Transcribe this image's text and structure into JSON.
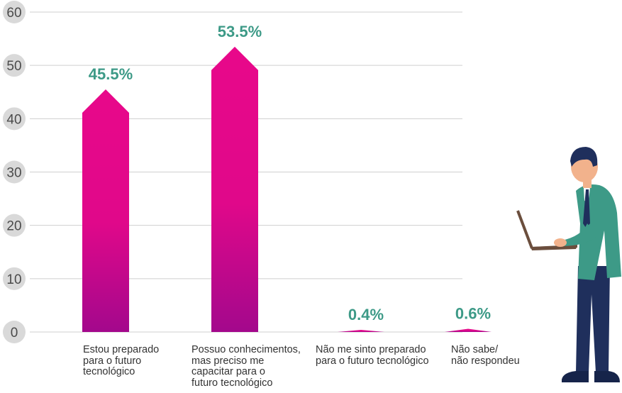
{
  "chart_data": {
    "type": "bar",
    "title": "",
    "xlabel": "",
    "ylabel": "",
    "ylim": [
      0,
      60
    ],
    "yticks": [
      0,
      10,
      20,
      30,
      40,
      50,
      60
    ],
    "grid": true,
    "categories": [
      "Estou preparado\npara o futuro\ntecnológico",
      "Possuo conhecimentos,\nmas preciso me\ncapacitar para o\nfuturo tecnológico",
      "Não me sinto preparado\npara o futuro tecnológico",
      "Não sabe/\nnão respondeu"
    ],
    "values": [
      45.5,
      53.5,
      0.4,
      0.6
    ],
    "value_labels": [
      "45.5%",
      "53.5%",
      "0.4%",
      "0.6%"
    ],
    "colors": {
      "bar_top": "#e8088a",
      "bar_bottom": "#a3088c",
      "value_label": "#3d9a87",
      "tick_badge": "#d9d9d9"
    }
  },
  "illustration": {
    "icon": "man-with-laptop-icon"
  }
}
